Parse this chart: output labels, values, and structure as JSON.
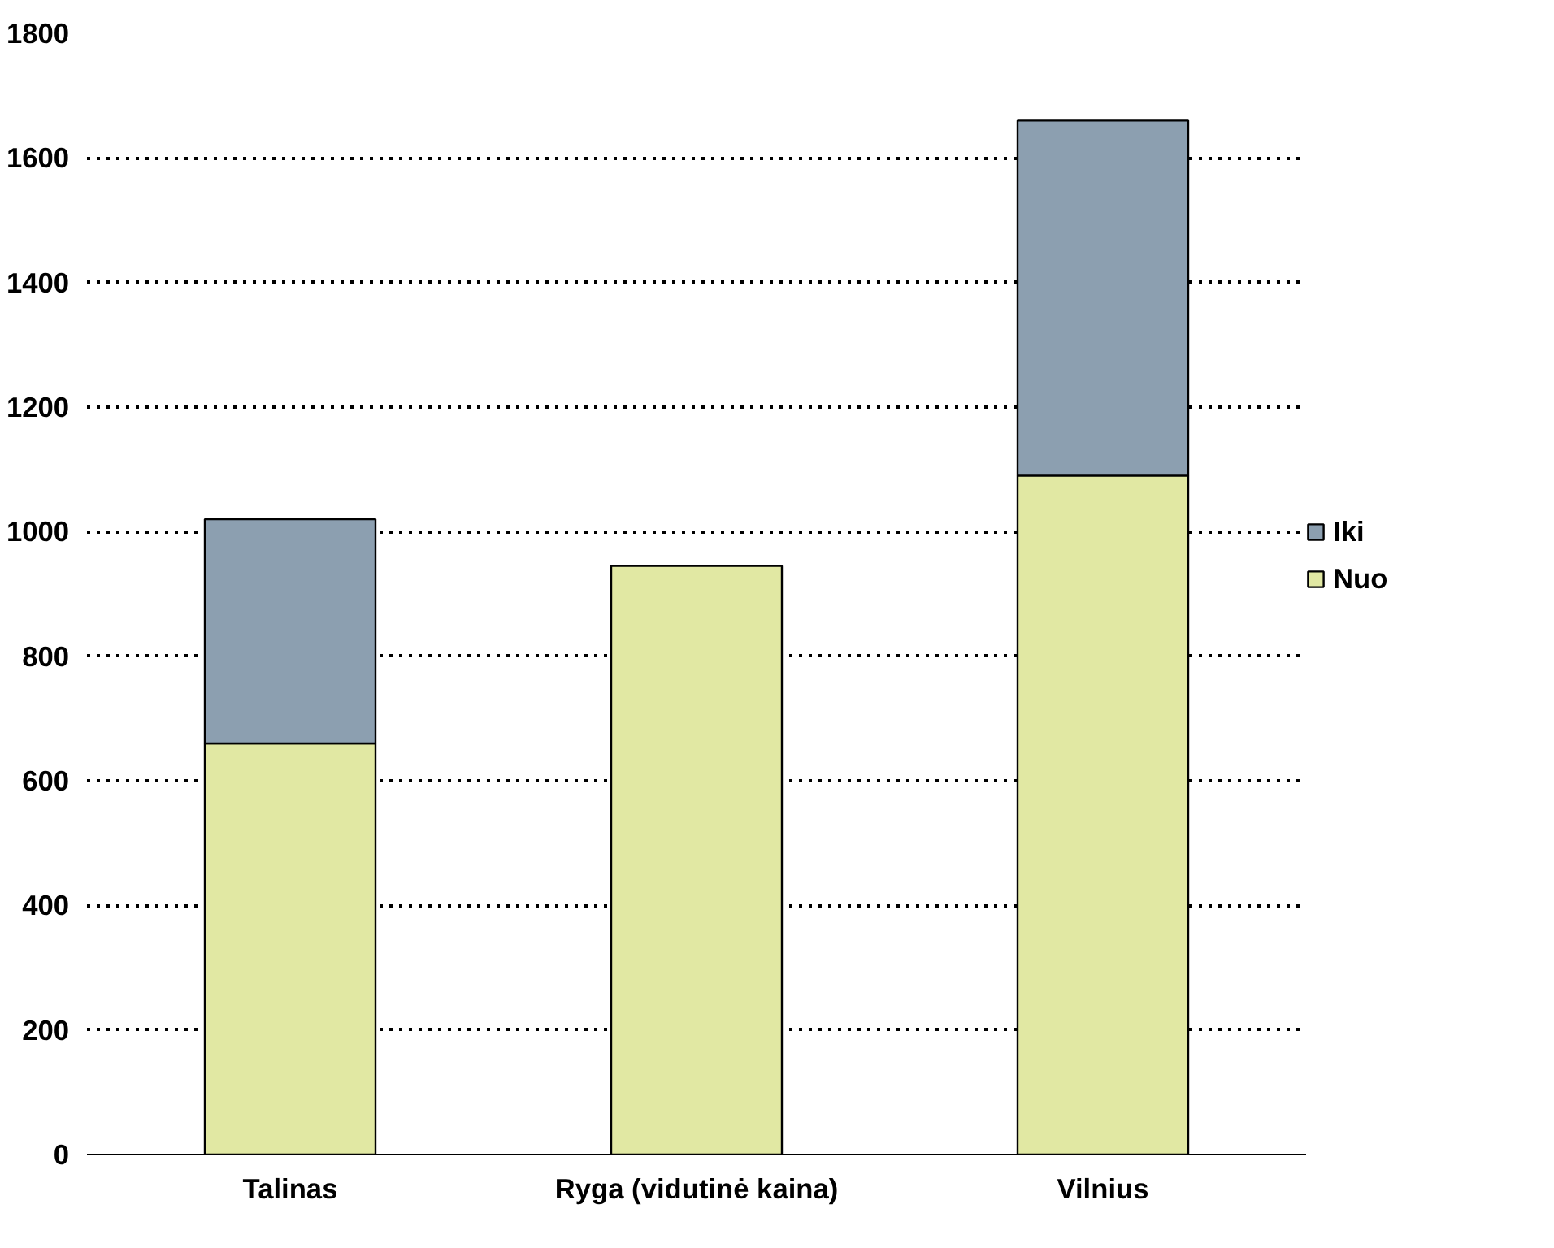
{
  "chart_data": {
    "type": "bar",
    "stacked": true,
    "categories": [
      "Talinas",
      "Ryga (vidutinė kaina)",
      "Vilnius"
    ],
    "series": [
      {
        "name": "Nuo",
        "color": "#e1e8a3",
        "values": [
          660,
          945,
          1090
        ]
      },
      {
        "name": "Iki",
        "color": "#8c9fb0",
        "values": [
          360,
          null,
          570
        ]
      }
    ],
    "ylim": [
      0,
      1800
    ],
    "yticks": [
      0,
      200,
      400,
      600,
      800,
      1000,
      1200,
      1400,
      1600,
      1800
    ],
    "grid": "y",
    "legend": "right"
  }
}
